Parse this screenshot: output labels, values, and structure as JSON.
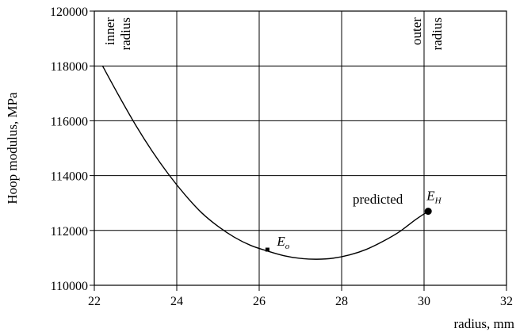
{
  "chart_data": {
    "type": "line",
    "xlabel": "radius, mm",
    "ylabel": "Hoop modulus, MPa",
    "xlim": [
      22,
      32
    ],
    "ylim": [
      110000,
      120000
    ],
    "x_ticks": [
      "22",
      "24",
      "26",
      "28",
      "30",
      "32"
    ],
    "y_ticks": [
      "110000",
      "112000",
      "114000",
      "116000",
      "118000",
      "120000"
    ],
    "grid": true,
    "series": [
      {
        "x": [
          22.2,
          22.6,
          23.0,
          23.4,
          23.8,
          24.2,
          24.6,
          25.0,
          25.4,
          25.8,
          26.2,
          26.6,
          27.0,
          27.4,
          27.8,
          28.2,
          28.6,
          29.0,
          29.4,
          29.8,
          30.1
        ],
        "y": [
          118000,
          116900,
          115850,
          114900,
          114050,
          113300,
          112650,
          112150,
          111750,
          111450,
          111250,
          111080,
          110980,
          110950,
          110990,
          111110,
          111310,
          111600,
          111950,
          112400,
          112700
        ]
      }
    ],
    "annotations": [
      {
        "text_top": "inner",
        "text_bottom": "radius"
      },
      {
        "text_top": "outer",
        "text_bottom": "radius"
      },
      {
        "text": "predicted"
      }
    ],
    "markers": [
      {
        "label": "E",
        "sub": "o",
        "x": 26.2,
        "y": 111300,
        "size": "small"
      },
      {
        "label": "E",
        "sub": "H",
        "x": 30.1,
        "y": 112700,
        "size": "large"
      }
    ]
  }
}
